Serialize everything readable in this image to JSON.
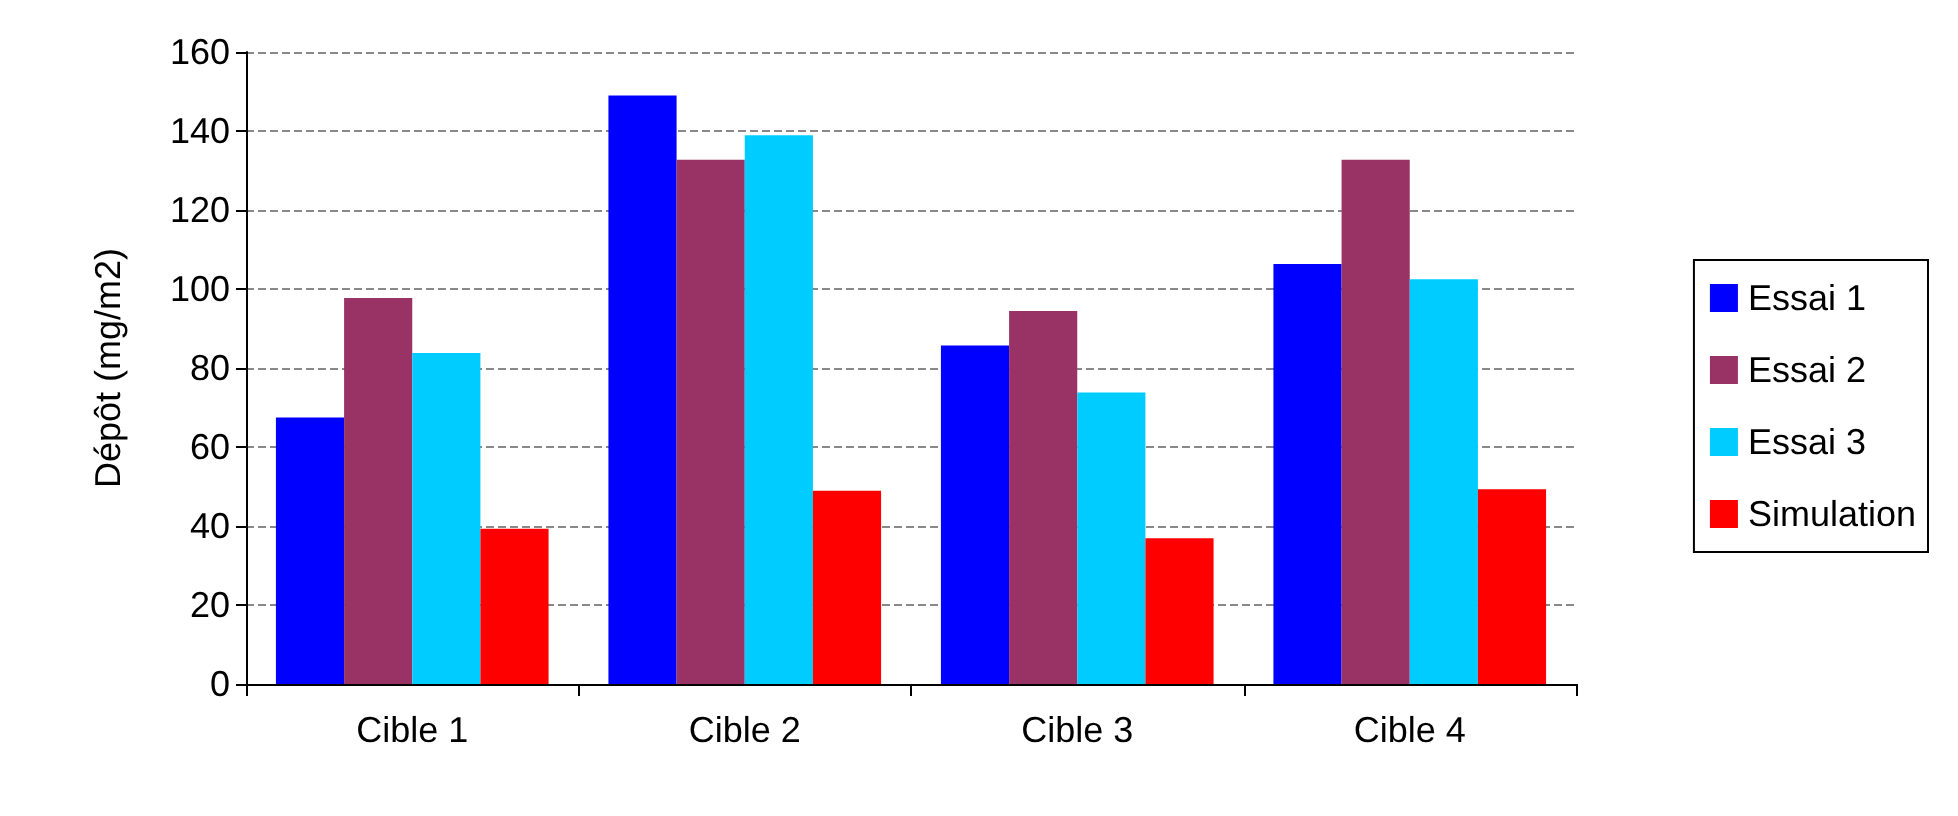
{
  "chart_data": {
    "type": "bar",
    "ylabel": "Dépôt (mg/m2)",
    "categories": [
      "Cible 1",
      "Cible 2",
      "Cible 3",
      "Cible 4"
    ],
    "series": [
      {
        "name": "Essai 1",
        "color": "#0000ff",
        "values": [
          67.5,
          149,
          85.7,
          106.3
        ]
      },
      {
        "name": "Essai 2",
        "color": "#993366",
        "values": [
          97.7,
          132.7,
          94.4,
          132.7
        ]
      },
      {
        "name": "Essai 3",
        "color": "#00ccff",
        "values": [
          83.8,
          138.9,
          73.8,
          102.5
        ]
      },
      {
        "name": "Simulation",
        "color": "#ff0000",
        "values": [
          39.3,
          48.9,
          36.9,
          49.3
        ]
      }
    ],
    "ylim": [
      0,
      160
    ],
    "yticks": [
      0,
      20,
      40,
      60,
      80,
      100,
      120,
      140,
      160
    ],
    "grid": "y",
    "legend": "right"
  }
}
